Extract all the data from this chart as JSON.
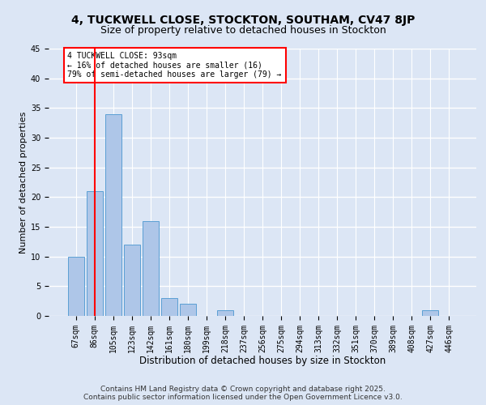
{
  "title": "4, TUCKWELL CLOSE, STOCKTON, SOUTHAM, CV47 8JP",
  "subtitle": "Size of property relative to detached houses in Stockton",
  "xlabel": "Distribution of detached houses by size in Stockton",
  "ylabel": "Number of detached properties",
  "categories": [
    "67sqm",
    "86sqm",
    "105sqm",
    "123sqm",
    "142sqm",
    "161sqm",
    "180sqm",
    "199sqm",
    "218sqm",
    "237sqm",
    "256sqm",
    "275sqm",
    "294sqm",
    "313sqm",
    "332sqm",
    "351sqm",
    "370sqm",
    "389sqm",
    "408sqm",
    "427sqm",
    "446sqm"
  ],
  "values": [
    10,
    21,
    34,
    12,
    16,
    3,
    2,
    0,
    1,
    0,
    0,
    0,
    0,
    0,
    0,
    0,
    0,
    0,
    0,
    1,
    0
  ],
  "bar_color": "#aec6e8",
  "bar_edge_color": "#5a9fd4",
  "bg_color": "#dce6f5",
  "grid_color": "#ffffff",
  "vline_x": 1,
  "vline_color": "#ff0000",
  "annotation_text": "4 TUCKWELL CLOSE: 93sqm\n← 16% of detached houses are smaller (16)\n79% of semi-detached houses are larger (79) →",
  "annotation_box_color": "#ff0000",
  "ylim": [
    0,
    45
  ],
  "yticks": [
    0,
    5,
    10,
    15,
    20,
    25,
    30,
    35,
    40,
    45
  ],
  "footer": "Contains HM Land Registry data © Crown copyright and database right 2025.\nContains public sector information licensed under the Open Government Licence v3.0.",
  "title_fontsize": 10,
  "subtitle_fontsize": 9,
  "xlabel_fontsize": 8.5,
  "ylabel_fontsize": 8,
  "tick_fontsize": 7,
  "footer_fontsize": 6.5
}
